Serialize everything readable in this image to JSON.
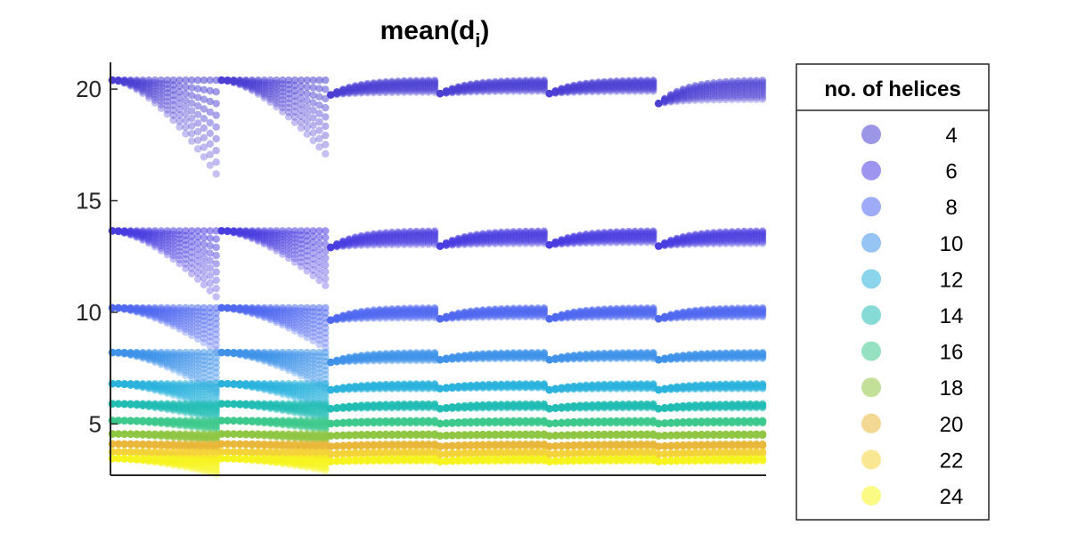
{
  "chart_data": {
    "type": "scatter",
    "title": "mean(d",
    "title_subscript": "i",
    "title_suffix": ")",
    "xlabel": "",
    "ylabel": "",
    "ylim": [
      2.7,
      21.2
    ],
    "y_ticks": [
      "5",
      "10",
      "15",
      "20"
    ],
    "y_tick_values": [
      5,
      10,
      15,
      20
    ],
    "x_ticks_visible": false,
    "grid": false,
    "segments": 6,
    "points_per_curve": 18,
    "legend": {
      "title": "no. of helices",
      "placement": "outside-right",
      "entries": [
        "4",
        "6",
        "8",
        "10",
        "12",
        "14",
        "16",
        "18",
        "20",
        "22",
        "24"
      ]
    },
    "series": [
      {
        "name": "4",
        "color": "#4b3fd4",
        "opacity": 0.55,
        "base": 20.4,
        "tail_min": [
          16.2,
          17.1,
          19.2,
          19.3,
          19.3,
          18.5
        ]
      },
      {
        "name": "6",
        "color": "#4a3de0",
        "opacity": 0.55,
        "base": 13.65,
        "tail_min": [
          10.7,
          11.2,
          12.3,
          12.4,
          12.5,
          12.4
        ]
      },
      {
        "name": "8",
        "color": "#4f68f0",
        "opacity": 0.55,
        "base": 10.2,
        "tail_min": [
          8.3,
          8.4,
          9.2,
          9.3,
          9.3,
          9.3
        ]
      },
      {
        "name": "10",
        "color": "#3f93ea",
        "opacity": 0.55,
        "base": 8.2,
        "tail_min": [
          6.4,
          6.6,
          7.4,
          7.6,
          7.6,
          7.6
        ]
      },
      {
        "name": "12",
        "color": "#2cb3dd",
        "opacity": 0.55,
        "base": 6.8,
        "tail_min": [
          5.6,
          5.7,
          6.3,
          6.4,
          6.3,
          6.3
        ]
      },
      {
        "name": "14",
        "color": "#22bdb4",
        "opacity": 0.55,
        "base": 5.9,
        "tail_min": [
          5.2,
          5.2,
          5.5,
          5.5,
          5.5,
          5.5
        ]
      },
      {
        "name": "16",
        "color": "#3ec98c",
        "opacity": 0.55,
        "base": 5.15,
        "tail_min": [
          4.7,
          4.7,
          4.9,
          4.9,
          4.9,
          4.9
        ]
      },
      {
        "name": "18",
        "color": "#8fc644",
        "opacity": 0.55,
        "base": 4.55,
        "tail_min": [
          4.2,
          4.2,
          4.4,
          4.4,
          4.4,
          4.4
        ]
      },
      {
        "name": "20",
        "color": "#e9b83a",
        "opacity": 0.55,
        "base": 4.1,
        "tail_min": [
          3.8,
          3.8,
          3.9,
          3.9,
          3.9,
          3.9
        ]
      },
      {
        "name": "22",
        "color": "#f5d43a",
        "opacity": 0.55,
        "base": 3.75,
        "tail_min": [
          3.3,
          3.4,
          3.55,
          3.55,
          3.55,
          3.55
        ]
      },
      {
        "name": "24",
        "color": "#f7f51f",
        "opacity": 0.55,
        "base": 3.45,
        "tail_min": [
          2.75,
          2.9,
          3.2,
          3.2,
          3.2,
          3.2
        ]
      }
    ]
  }
}
